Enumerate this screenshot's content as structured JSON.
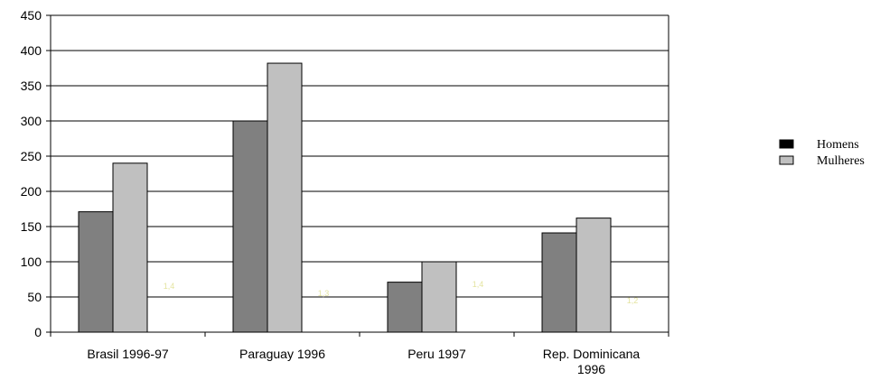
{
  "chart_data": {
    "type": "bar",
    "categories": [
      [
        "Brasil 1996-97"
      ],
      [
        "Paraguay 1996"
      ],
      [
        "Peru 1997"
      ],
      [
        "Rep. Dominicana",
        "1996"
      ]
    ],
    "series": [
      {
        "name": "Homens",
        "values": [
          171,
          300,
          71,
          141
        ],
        "color": "#808080",
        "legend_color": "#000000"
      },
      {
        "name": "Mulheres",
        "values": [
          240,
          382,
          100,
          162
        ],
        "color": "#c0c0c0",
        "legend_color": "#c0c0c0"
      }
    ],
    "faint_labels": [
      "1,4",
      "1,3",
      "1,4",
      "1,2"
    ],
    "ylim": [
      0,
      450
    ],
    "yticks": [
      0,
      50,
      100,
      150,
      200,
      250,
      300,
      350,
      400,
      450
    ],
    "grid": true,
    "legend_position": "right"
  }
}
